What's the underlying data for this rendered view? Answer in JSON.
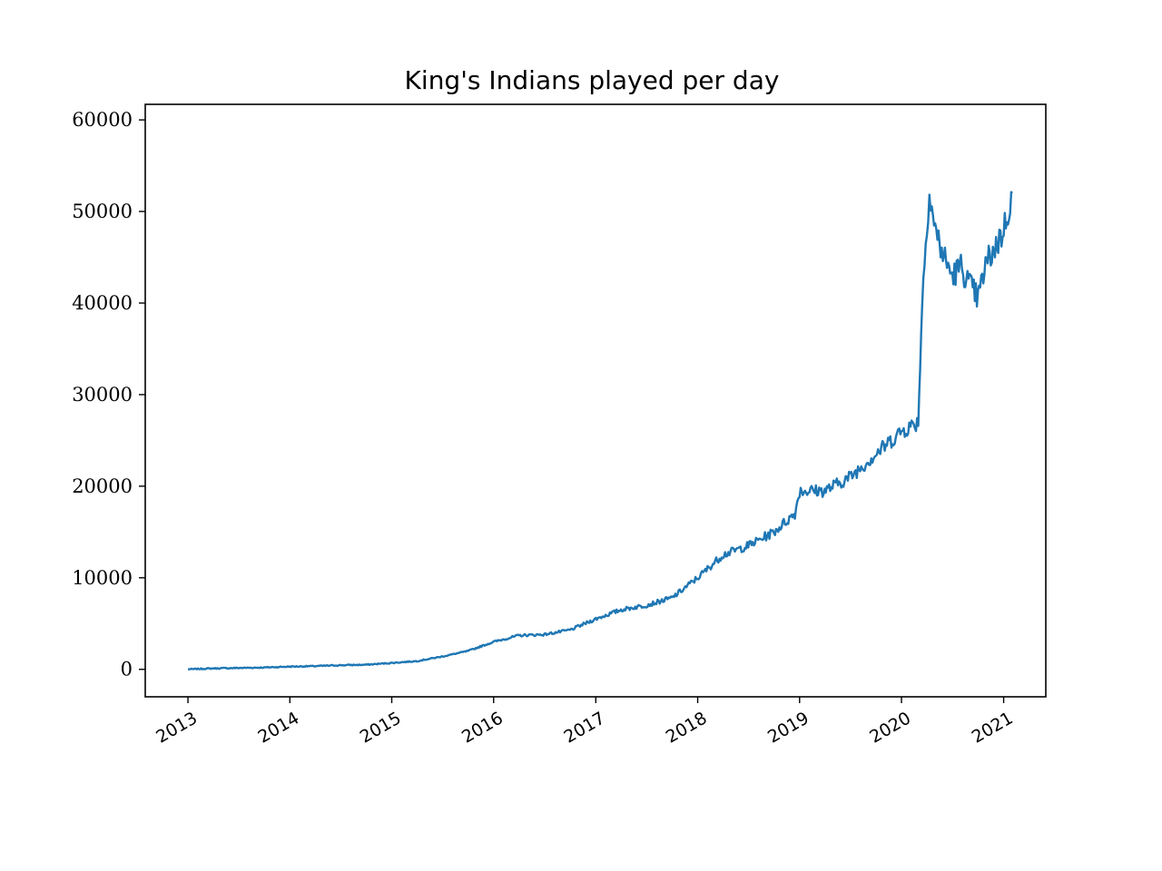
{
  "chart_data": {
    "type": "line",
    "title": "King's Indians played per day",
    "xlabel": "",
    "ylabel": "",
    "x_ticks": [
      "2013",
      "2014",
      "2015",
      "2016",
      "2017",
      "2018",
      "2019",
      "2020",
      "2021"
    ],
    "y_ticks": [
      0,
      10000,
      20000,
      30000,
      40000,
      50000,
      60000
    ],
    "xlim": [
      "2012-08-01",
      "2021-06-01"
    ],
    "ylim": [
      -3000,
      61700
    ],
    "grid": false,
    "color": "#1f77b4",
    "series": [
      {
        "x": [
          "2013-01-01",
          "2013-04-01",
          "2013-07-01",
          "2013-10-01",
          "2014-01-01",
          "2014-04-01",
          "2014-07-01",
          "2014-10-01",
          "2015-01-01",
          "2015-04-01",
          "2015-07-01",
          "2015-10-01",
          "2016-01-01",
          "2016-04-01",
          "2016-07-01",
          "2016-10-01",
          "2017-01-01",
          "2017-04-01",
          "2017-07-01",
          "2017-10-01",
          "2018-01-01",
          "2018-04-01",
          "2018-07-01",
          "2018-10-01",
          "2018-12-15",
          "2019-01-01",
          "2019-04-01",
          "2019-07-01",
          "2019-10-01",
          "2020-01-01",
          "2020-03-01",
          "2020-03-15",
          "2020-04-01",
          "2020-04-10",
          "2020-05-01",
          "2020-06-01",
          "2020-07-01",
          "2020-08-01",
          "2020-09-01",
          "2020-10-01",
          "2020-11-01",
          "2020-12-01",
          "2021-01-01",
          "2021-02-01"
        ],
        "y": [
          0,
          100,
          150,
          200,
          300,
          350,
          450,
          500,
          700,
          900,
          1400,
          2000,
          3000,
          3700,
          3800,
          4300,
          5500,
          6500,
          7000,
          7800,
          10000,
          12500,
          13500,
          15000,
          17000,
          19500,
          19500,
          21000,
          23500,
          26000,
          27000,
          40000,
          49000,
          52000,
          48000,
          45000,
          43000,
          44000,
          42000,
          40500,
          44500,
          46000,
          48000,
          52000
        ]
      }
    ]
  }
}
